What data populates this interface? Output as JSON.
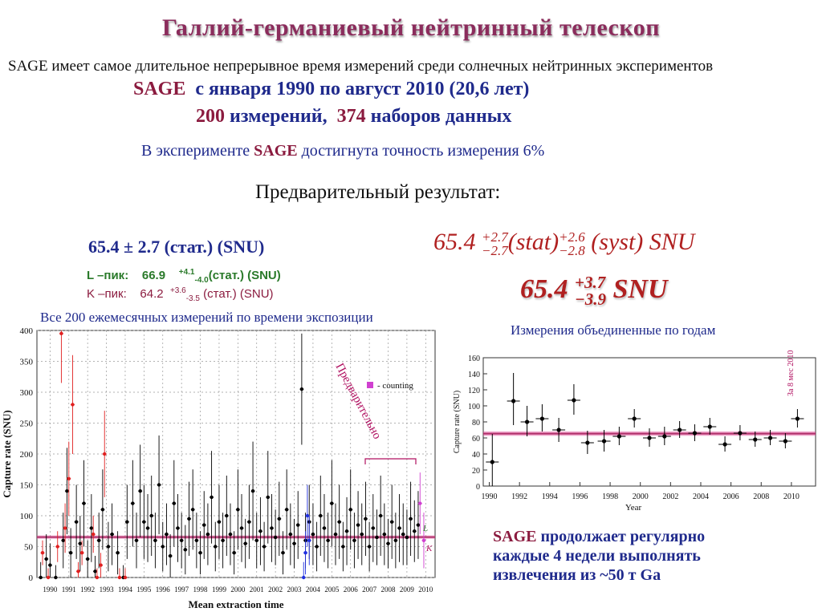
{
  "title": "Галлий-германиевый нейтринный телескоп",
  "intro": "SAGE имеет самое длительное непрерывное время измерений среди солнечных нейтринных экспериментов",
  "period": {
    "sage": "SAGE",
    "text": "с января 1990 по август 2010 (20,6 лет)"
  },
  "counts": {
    "n_meas": "200",
    "meas_text": "измерений,",
    "n_sets": "374",
    "sets_text": "наборов данных"
  },
  "accuracy": {
    "pre": "В  эксперименте ",
    "sage": "SAGE",
    "post": " достигнута точность измерения 6%"
  },
  "preliminary": "Предварительный результат:",
  "stat_result": "65.4 ± 2.7 (стат.) (SNU)",
  "l_peak": {
    "label": "L –пик:",
    "value": "66.9",
    "plus": "+4.1",
    "minus": "-4.0",
    "unit": "(стат.)  (SNU)"
  },
  "k_peak": {
    "label": "K –пик:",
    "value": "64.2",
    "plus": "+3.6",
    "minus": "-3.5",
    "unit": "(стат.)  (SNU)"
  },
  "result_full": {
    "value": "65.4",
    "stat_plus": "+2.7",
    "stat_minus": "−2.7",
    "stat": "(stat)",
    "syst_plus": "+2.6",
    "syst_minus": "−2.8",
    "syst": "(syst) SNU"
  },
  "result_total": {
    "value": "65.4",
    "plus": "+3.7",
    "minus": "−3.9",
    "unit": "SNU"
  },
  "left_caption": "Все 200 ежемесячных измерений по времени экспозиции",
  "right_caption": "Измерения объединенные по годам",
  "bottom_text": {
    "sage": "SAGE",
    "line1": "продолжает регулярно",
    "line2": "каждые 4 недели выполнять",
    "line3": "извлечения  из ~50 т Ga"
  },
  "colors": {
    "band": "#E0509A",
    "mean_line": "#B0306A",
    "blue": "#2030E0",
    "red": "#E02020",
    "magenta": "#D040D0"
  },
  "chart_data": [
    {
      "type": "scatter",
      "title": "",
      "xlabel": "Mean extraction time",
      "ylabel": "Capture rate (SNU)",
      "xlim": [
        1989.8,
        2011.0
      ],
      "ylim": [
        0,
        400
      ],
      "y_ticks": [
        0,
        50,
        100,
        150,
        200,
        250,
        300,
        350,
        400
      ],
      "x_ticks": [
        "1990",
        "1991",
        "1992",
        "1993",
        "1994",
        "1995",
        "1996",
        "1997",
        "1998",
        "1999",
        "2000",
        "2001",
        "2002",
        "2003",
        "2004",
        "2005",
        "2006",
        "2007",
        "2008",
        "2009",
        "2010"
      ],
      "grid": true,
      "mean": 65.4,
      "band": [
        62.7,
        68.1
      ],
      "legend": "- counting",
      "annotation": "Предварительно",
      "peak_labels": [
        "L",
        "K"
      ],
      "series": [
        {
          "name": "",
          "color": "#000000",
          "x": [
            1990.0,
            1990.3,
            1990.5,
            1990.8,
            1991.2,
            1991.4,
            1991.6,
            1991.9,
            1992.1,
            1992.3,
            1992.5,
            1992.7,
            1992.9,
            1993.1,
            1993.3,
            1993.6,
            1993.8,
            1994.1,
            1994.4,
            1994.6,
            1994.9,
            1995.1,
            1995.3,
            1995.5,
            1995.7,
            1995.9,
            1996.1,
            1996.3,
            1996.5,
            1996.7,
            1996.9,
            1997.1,
            1997.3,
            1997.5,
            1997.7,
            1997.9,
            1998.1,
            1998.3,
            1998.5,
            1998.7,
            1998.9,
            1999.1,
            1999.3,
            1999.5,
            1999.7,
            1999.9,
            2000.1,
            2000.3,
            2000.5,
            2000.7,
            2000.9,
            2001.1,
            2001.3,
            2001.5,
            2001.7,
            2001.9,
            2002.1,
            2002.3,
            2002.5,
            2002.7,
            2002.9,
            2003.1,
            2003.3,
            2003.5,
            2003.7,
            2003.9,
            2004.1,
            2004.3,
            2004.5,
            2004.7,
            2004.9,
            2005.1,
            2005.3,
            2005.5,
            2005.7,
            2005.9,
            2006.1,
            2006.3,
            2006.5,
            2006.7,
            2006.9,
            2007.1,
            2007.3,
            2007.5,
            2007.7,
            2007.9,
            2008.1,
            2008.3,
            2008.5,
            2008.7,
            2008.9,
            2009.1,
            2009.3,
            2009.5,
            2009.7,
            2009.9,
            2010.1
          ],
          "y": [
            0,
            30,
            20,
            0,
            60,
            140,
            40,
            90,
            55,
            120,
            30,
            80,
            10,
            60,
            110,
            50,
            70,
            40,
            0,
            90,
            120,
            60,
            140,
            90,
            80,
            100,
            60,
            150,
            50,
            70,
            35,
            120,
            80,
            60,
            45,
            95,
            110,
            60,
            40,
            85,
            70,
            130,
            50,
            90,
            60,
            100,
            70,
            40,
            110,
            80,
            55,
            90,
            140,
            60,
            75,
            50,
            130,
            80,
            65,
            95,
            40,
            110,
            70,
            55,
            85,
            305,
            60,
            90,
            70,
            50,
            100,
            80,
            60,
            120,
            70,
            90,
            50,
            75,
            110,
            60,
            85,
            70,
            95,
            50,
            80,
            65,
            100,
            70,
            55,
            90,
            60,
            80,
            70,
            65,
            95,
            75,
            85
          ],
          "err": [
            25,
            40,
            35,
            20,
            45,
            70,
            40,
            60,
            45,
            70,
            30,
            55,
            25,
            45,
            65,
            40,
            50,
            35,
            20,
            60,
            70,
            45,
            75,
            60,
            55,
            65,
            45,
            80,
            40,
            50,
            35,
            70,
            55,
            45,
            40,
            60,
            65,
            45,
            35,
            55,
            50,
            75,
            40,
            60,
            45,
            65,
            50,
            35,
            65,
            55,
            40,
            60,
            80,
            45,
            55,
            40,
            75,
            55,
            45,
            60,
            35,
            65,
            50,
            40,
            55,
            90,
            45,
            60,
            50,
            40,
            65,
            55,
            45,
            70,
            50,
            60,
            40,
            55,
            65,
            45,
            55,
            50,
            60,
            40,
            55,
            45,
            65,
            50,
            40,
            60,
            45,
            55,
            50,
            45,
            60,
            50,
            55
          ]
        },
        {
          "name": "",
          "color": "#E02020",
          "x": [
            1990.1,
            1990.4,
            1990.9,
            1991.1,
            1991.3,
            1991.5,
            1991.7,
            1992.0,
            1992.2,
            1992.8,
            1993.0,
            1993.2,
            1993.4,
            1994.2,
            1994.5
          ],
          "y": [
            40,
            0,
            50,
            395,
            80,
            160,
            280,
            10,
            40,
            70,
            0,
            20,
            200,
            0,
            0
          ],
          "err": [
            20,
            15,
            25,
            80,
            40,
            60,
            80,
            15,
            20,
            30,
            15,
            20,
            70,
            15,
            15
          ]
        },
        {
          "name": "",
          "color": "#2030E0",
          "x": [
            2004.0,
            2004.1,
            2004.2,
            2004.3
          ],
          "y": [
            0,
            40,
            100,
            60
          ],
          "err": [
            25,
            35,
            50,
            40
          ]
        },
        {
          "name": "",
          "color": "#D040D0",
          "x": [
            2010.2,
            2010.4
          ],
          "y": [
            120,
            60
          ],
          "err": [
            50,
            45
          ]
        }
      ]
    },
    {
      "type": "scatter",
      "title": "",
      "xlabel": "Year",
      "ylabel": "Capture rate (SNU)",
      "xlim": [
        1989.6,
        2011.6
      ],
      "ylim": [
        0,
        160
      ],
      "y_ticks": [
        0,
        20,
        40,
        60,
        80,
        100,
        120,
        140,
        160
      ],
      "x_ticks": [
        "1990",
        "1992",
        "1994",
        "1996",
        "1998",
        "2000",
        "2002",
        "2004",
        "2006",
        "2008",
        "2010"
      ],
      "grid": false,
      "mean": 65.4,
      "band": [
        62.7,
        68.1
      ],
      "annotation": "За 8 мес 2010",
      "series": [
        {
          "name": "",
          "color": "#000000",
          "x": [
            1990.2,
            1991.6,
            1992.5,
            1993.5,
            1994.6,
            1995.6,
            1996.5,
            1997.6,
            1998.6,
            1999.6,
            2000.6,
            2001.6,
            2002.6,
            2003.6,
            2004.6,
            2005.6,
            2006.6,
            2007.6,
            2008.6,
            2009.6,
            2010.4
          ],
          "y": [
            30,
            106,
            80,
            84,
            70,
            107,
            54,
            56,
            62,
            84,
            60,
            62,
            70,
            66,
            74,
            52,
            66,
            58,
            60,
            56,
            84
          ],
          "err_up": [
            35,
            35,
            20,
            18,
            15,
            20,
            15,
            14,
            12,
            12,
            12,
            12,
            11,
            11,
            11,
            10,
            10,
            10,
            10,
            10,
            12
          ],
          "err_down": [
            30,
            30,
            18,
            16,
            15,
            18,
            14,
            13,
            11,
            11,
            11,
            11,
            10,
            10,
            10,
            9,
            9,
            9,
            9,
            9,
            11
          ]
        }
      ]
    }
  ]
}
